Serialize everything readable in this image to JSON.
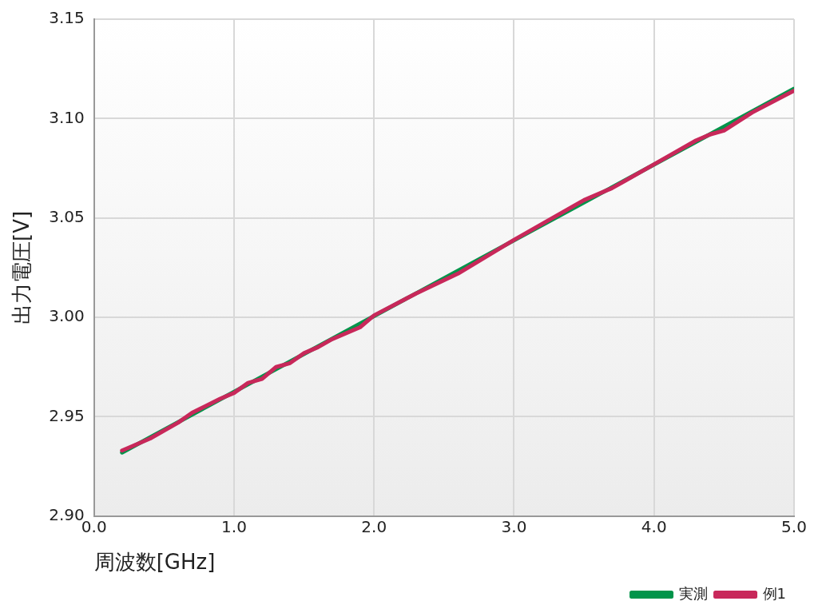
{
  "chart_data": {
    "type": "line",
    "xlabel": "周波数[GHz]",
    "ylabel": "出力電圧[V]",
    "xlim": [
      0,
      5
    ],
    "xticks": [
      {
        "value": 0,
        "label": "0.0"
      },
      {
        "value": 1,
        "label": "1.0"
      },
      {
        "value": 2,
        "label": "2.0"
      },
      {
        "value": 3,
        "label": "3.0"
      },
      {
        "value": 4,
        "label": "4.0"
      },
      {
        "value": 5,
        "label": "5.0"
      }
    ],
    "ylim": [
      2.9,
      3.15
    ],
    "yticks": [
      {
        "value": 2.9,
        "label": "2.90"
      },
      {
        "value": 2.95,
        "label": "2.95"
      },
      {
        "value": 3,
        "label": "3.00"
      },
      {
        "value": 3.05,
        "label": "3.05"
      },
      {
        "value": 3.1,
        "label": "3.10"
      },
      {
        "value": 3.15,
        "label": "3.15"
      }
    ],
    "grid": true,
    "legend": "bottom right",
    "marker": "none",
    "series": [
      {
        "name": "実測",
        "color": "#00944a",
        "x": [
          0.2,
          5.0
        ],
        "values": [
          2.932,
          3.115
        ]
      },
      {
        "name": "例1",
        "color": "#c8285a",
        "x": [
          0.2,
          0.4,
          0.6,
          0.7,
          0.9,
          1.0,
          1.1,
          1.2,
          1.3,
          1.4,
          1.5,
          1.6,
          1.7,
          1.9,
          2.0,
          2.3,
          2.6,
          3.0,
          3.5,
          3.7,
          3.8,
          4.0,
          4.3,
          4.4,
          4.5,
          4.7,
          5.0
        ],
        "values": [
          2.933,
          2.939,
          2.947,
          2.952,
          2.959,
          2.962,
          2.967,
          2.969,
          2.975,
          2.977,
          2.982,
          2.985,
          2.989,
          2.995,
          3.001,
          3.012,
          3.022,
          3.039,
          3.059,
          3.065,
          3.069,
          3.077,
          3.089,
          3.092,
          3.094,
          3.103,
          3.114
        ]
      }
    ]
  }
}
